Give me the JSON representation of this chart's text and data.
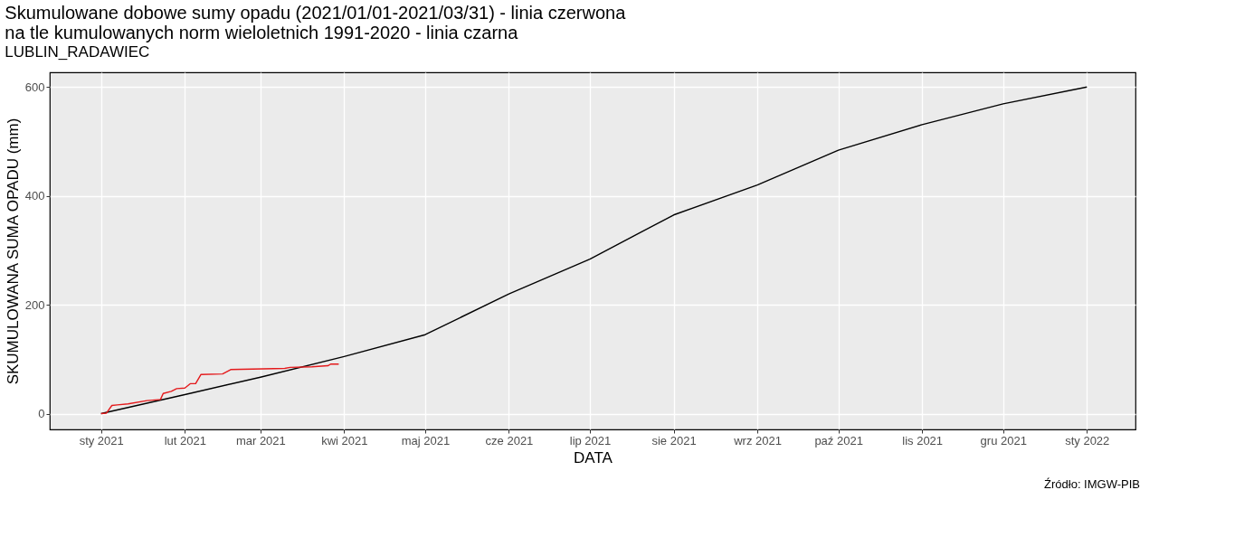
{
  "chart_data": {
    "type": "line",
    "title": [
      "Skumulowane dobowe sumy opadu (2021/01/01-2021/03/31) - linia czerwona",
      "na tle kumulowanych norm wieloletnich 1991-2020 - linia czarna"
    ],
    "subtitle": "LUBLIN_RADAWIEC",
    "xlabel": "DATA",
    "ylabel": "SKUMULOWANA SUMA OPADU (mm)",
    "annotations": [
      "Źródło: IMGW-PIB"
    ],
    "series": [
      {
        "color": "#000000",
        "x": [
          "2021-01-01",
          "2021-02-01",
          "2021-03-01",
          "2021-04-01",
          "2021-05-01",
          "2021-06-01",
          "2021-07-01",
          "2021-08-01",
          "2021-09-01",
          "2021-10-01",
          "2021-11-01",
          "2021-12-01",
          "2022-01-01"
        ],
        "values": [
          0,
          35,
          67,
          105,
          145,
          220,
          284,
          365,
          420,
          484,
          531,
          569,
          600
        ]
      },
      {
        "color": "#e41a1c",
        "x": [
          "2021-01-01",
          "2021-01-03",
          "2021-01-05",
          "2021-01-07",
          "2021-01-11",
          "2021-01-18",
          "2021-01-23",
          "2021-01-24",
          "2021-01-27",
          "2021-01-29",
          "2021-02-01",
          "2021-02-03",
          "2021-02-05",
          "2021-02-07",
          "2021-02-15",
          "2021-02-18",
          "2021-03-10",
          "2021-03-12",
          "2021-03-20",
          "2021-03-26",
          "2021-03-27",
          "2021-03-30"
        ],
        "values": [
          0,
          1,
          15,
          16,
          18,
          24,
          26,
          37,
          41,
          46,
          47,
          55,
          55,
          72,
          73,
          81,
          83,
          85,
          86,
          88,
          91,
          91
        ]
      }
    ],
    "xlim": [
      "2020-12-13",
      "2022-01-19"
    ],
    "xticks": [
      {
        "value": "2021-01-01",
        "label": "sty 2021"
      },
      {
        "value": "2021-02-01",
        "label": "lut 2021"
      },
      {
        "value": "2021-03-01",
        "label": "mar 2021"
      },
      {
        "value": "2021-04-01",
        "label": "kwi 2021"
      },
      {
        "value": "2021-05-01",
        "label": "maj 2021"
      },
      {
        "value": "2021-06-01",
        "label": "cze 2021"
      },
      {
        "value": "2021-07-01",
        "label": "lip 2021"
      },
      {
        "value": "2021-08-01",
        "label": "sie 2021"
      },
      {
        "value": "2021-09-01",
        "label": "wrz 2021"
      },
      {
        "value": "2021-10-01",
        "label": "paź 2021"
      },
      {
        "value": "2021-11-01",
        "label": "lis 2021"
      },
      {
        "value": "2021-12-01",
        "label": "gru 2021"
      },
      {
        "value": "2022-01-01",
        "label": "sty 2022"
      }
    ],
    "ylim": [
      -29,
      627
    ],
    "yticks": [
      0,
      200,
      400,
      600
    ],
    "grid": true,
    "line_style": "solid",
    "marker": "none"
  }
}
